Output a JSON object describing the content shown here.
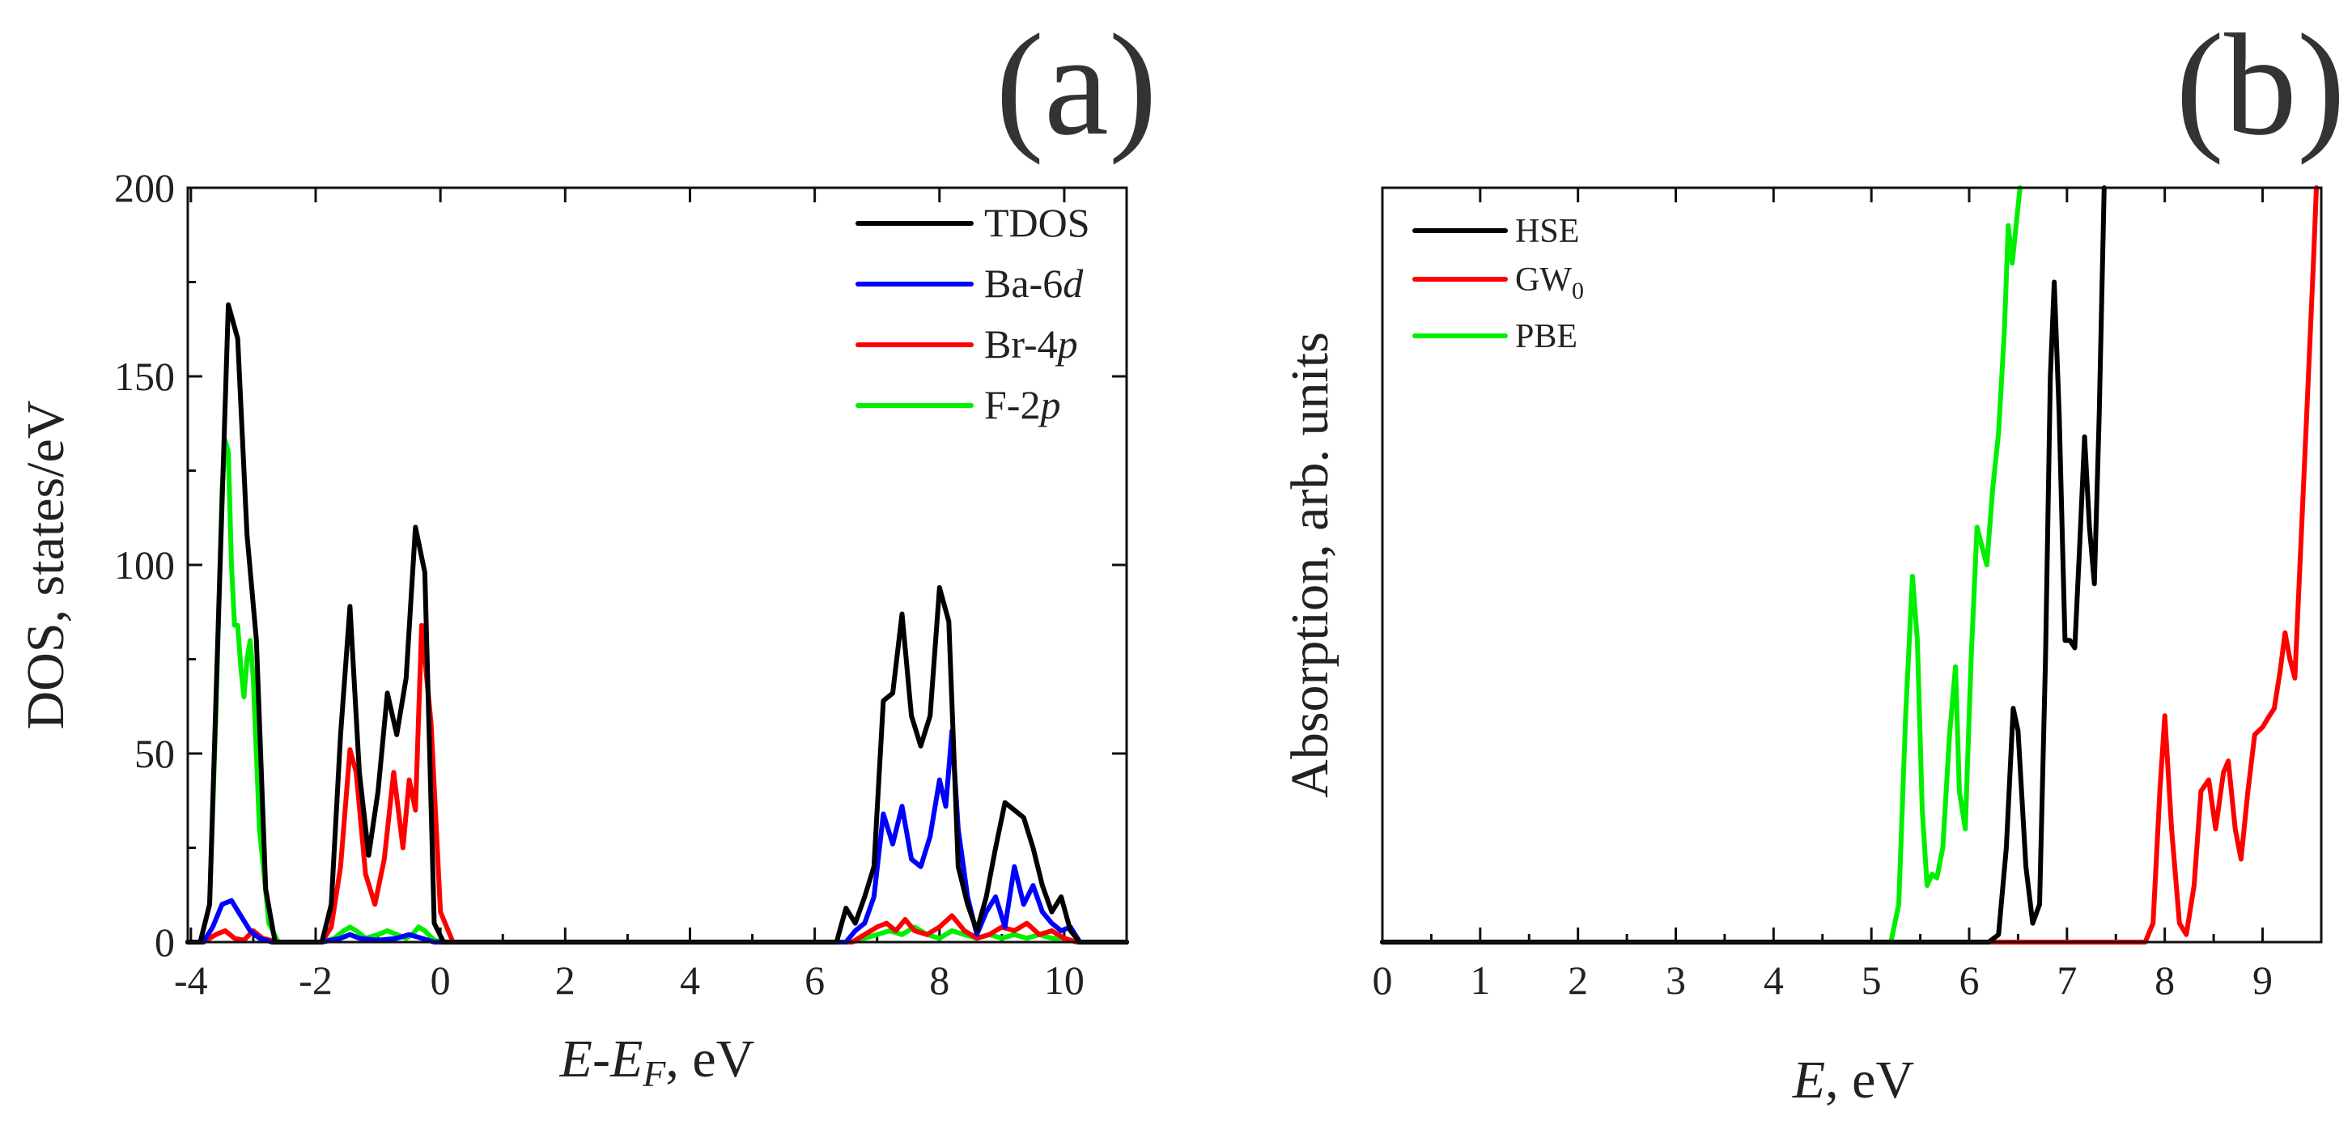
{
  "colors": {
    "TDOS": "#000000",
    "Ba-6d": "#0000ff",
    "Br-4p": "#ff0000",
    "F-2p": "#00ee00",
    "HSE": "#000000",
    "GW0": "#ff0000",
    "PBE": "#00ee00"
  },
  "chart_data": [
    {
      "type": "line",
      "panel_label": "(a)",
      "title": "",
      "xlabel": {
        "italic": "E",
        "dash": "-",
        "italic2": "E",
        "sub": "F",
        "rest": ", eV"
      },
      "ylabel": "DOS, states/eV",
      "xlim": [
        -4.05,
        11.0
      ],
      "ylim": [
        0,
        200
      ],
      "xticks": [
        -4,
        -2,
        0,
        2,
        4,
        6,
        8,
        10
      ],
      "xtick_labels": [
        "-4",
        "-2",
        "0",
        "2",
        "4",
        "6",
        "8",
        "10"
      ],
      "yticks": [
        0,
        50,
        100,
        150,
        200
      ],
      "ytick_labels": [
        "0",
        "50",
        "100",
        "150",
        "200"
      ],
      "legend": [
        {
          "key": "TDOS",
          "name": "TDOS",
          "italic": ""
        },
        {
          "key": "Ba-6d",
          "name": "Ba-6",
          "italic": "d"
        },
        {
          "key": "Br-4p",
          "name": "Br-4",
          "italic": "p"
        },
        {
          "key": "F-2p",
          "name": "F-2",
          "italic": "p"
        }
      ],
      "series": [
        {
          "name": "TDOS",
          "x": [
            -4.05,
            -3.85,
            -3.7,
            -3.55,
            -3.4,
            -3.25,
            -3.1,
            -2.95,
            -2.8,
            -2.65,
            -2.5,
            -1.9,
            -1.75,
            -1.6,
            -1.45,
            -1.3,
            -1.15,
            -1.0,
            -0.85,
            -0.7,
            -0.55,
            -0.4,
            -0.25,
            -0.1,
            0.05,
            0.2,
            6.2,
            6.35,
            6.5,
            6.65,
            6.8,
            6.95,
            7.1,
            7.25,
            7.4,
            7.55,
            7.7,
            7.85,
            8.0,
            8.15,
            8.3,
            8.45,
            8.6,
            8.75,
            8.9,
            9.05,
            9.2,
            9.35,
            9.5,
            9.65,
            9.8,
            9.95,
            10.1,
            10.25,
            10.4,
            11.0
          ],
          "values": [
            0,
            0,
            10,
            90,
            169,
            160,
            108,
            80,
            14,
            0,
            0,
            0,
            10,
            55,
            89,
            45,
            23,
            40,
            66,
            55,
            70,
            110,
            98,
            5,
            0,
            0,
            0,
            0,
            9,
            5,
            12,
            20,
            64,
            66,
            87,
            60,
            52,
            60,
            94,
            85,
            20,
            10,
            3,
            12,
            25,
            37,
            35,
            33,
            25,
            15,
            8,
            12,
            3,
            0,
            0,
            0
          ]
        },
        {
          "name": "Ba-6d",
          "x": [
            -4.05,
            -3.8,
            -3.65,
            -3.5,
            -3.35,
            -3.2,
            -3.05,
            -2.9,
            -2.7,
            -1.9,
            -1.6,
            -1.45,
            -1.3,
            -1.0,
            -0.7,
            -0.5,
            -0.3,
            -0.1,
            6.2,
            6.5,
            6.65,
            6.8,
            6.95,
            7.1,
            7.25,
            7.4,
            7.55,
            7.7,
            7.85,
            8.0,
            8.1,
            8.2,
            8.3,
            8.45,
            8.6,
            8.75,
            8.9,
            9.05,
            9.2,
            9.35,
            9.5,
            9.65,
            9.8,
            9.95,
            10.1,
            10.25,
            11.0
          ],
          "values": [
            0,
            0,
            4,
            10,
            11,
            7,
            3,
            1,
            0,
            0,
            1,
            2,
            1,
            0.5,
            1,
            2,
            1,
            0,
            0,
            0,
            3,
            5,
            12,
            34,
            26,
            36,
            22,
            20,
            28,
            43,
            36,
            56,
            30,
            12,
            2,
            8,
            12,
            4,
            20,
            10,
            15,
            8,
            5,
            3,
            4,
            0,
            0
          ]
        },
        {
          "name": "Br-4p",
          "x": [
            -4.05,
            -3.8,
            -3.6,
            -3.45,
            -3.3,
            -3.15,
            -3.0,
            -2.85,
            -2.6,
            -1.9,
            -1.75,
            -1.6,
            -1.45,
            -1.35,
            -1.2,
            -1.05,
            -0.9,
            -0.75,
            -0.6,
            -0.5,
            -0.4,
            -0.3,
            -0.15,
            0.0,
            0.2,
            6.2,
            6.6,
            6.8,
            7.0,
            7.15,
            7.3,
            7.45,
            7.6,
            7.8,
            8.0,
            8.2,
            8.4,
            8.6,
            8.8,
            9.0,
            9.2,
            9.4,
            9.6,
            9.8,
            10.0,
            10.2,
            11.0
          ],
          "values": [
            0,
            0,
            2,
            3,
            1,
            0.5,
            3,
            1,
            0,
            0,
            4,
            20,
            51,
            45,
            18,
            10,
            22,
            45,
            25,
            43,
            35,
            84,
            58,
            8,
            0,
            0,
            0,
            2,
            4,
            5,
            3,
            6,
            3,
            2,
            4,
            7,
            3,
            1,
            2,
            4,
            3,
            5,
            2,
            3,
            1,
            0,
            0
          ]
        },
        {
          "name": "F-2p",
          "x": [
            -4.05,
            -3.85,
            -3.7,
            -3.6,
            -3.5,
            -3.45,
            -3.4,
            -3.35,
            -3.3,
            -3.25,
            -3.2,
            -3.15,
            -3.1,
            -3.05,
            -3.0,
            -2.9,
            -2.75,
            -2.6,
            -1.9,
            -1.7,
            -1.55,
            -1.45,
            -1.35,
            -1.2,
            -1.0,
            -0.85,
            -0.7,
            -0.55,
            -0.45,
            -0.35,
            -0.25,
            -0.1,
            0.1,
            6.2,
            6.6,
            6.8,
            7.0,
            7.2,
            7.4,
            7.6,
            7.8,
            8.0,
            8.2,
            8.4,
            8.6,
            8.8,
            9.0,
            9.2,
            9.4,
            9.6,
            9.8,
            10.0,
            10.2,
            11.0
          ],
          "values": [
            0,
            0,
            10,
            60,
            120,
            133,
            130,
            100,
            84,
            84,
            73,
            65,
            75,
            80,
            70,
            30,
            5,
            0,
            0,
            1,
            3,
            4,
            3,
            1,
            2,
            3,
            2,
            1,
            2,
            4,
            3,
            0.5,
            0,
            0,
            0,
            1,
            2,
            3,
            2,
            4,
            2,
            1,
            3,
            2,
            1,
            2,
            1,
            2,
            1,
            2,
            1,
            1,
            0,
            0
          ]
        }
      ]
    },
    {
      "type": "line",
      "panel_label": "(b)",
      "title": "",
      "xlabel": {
        "italic": "E",
        "rest": ", eV"
      },
      "ylabel": "Absorption, arb. units",
      "xlim": [
        0,
        9.6
      ],
      "ylim": [
        0,
        200
      ],
      "xticks": [
        0,
        1,
        2,
        3,
        4,
        5,
        6,
        7,
        8,
        9
      ],
      "xtick_labels": [
        "0",
        "1",
        "2",
        "3",
        "4",
        "5",
        "6",
        "7",
        "8",
        "9"
      ],
      "yticks": [],
      "legend": [
        {
          "key": "HSE",
          "name": "HSE",
          "sub": ""
        },
        {
          "key": "GW0",
          "name": "GW",
          "sub": "0"
        },
        {
          "key": "PBE",
          "name": "PBE",
          "sub": ""
        }
      ],
      "series": [
        {
          "name": "HSE",
          "x": [
            0,
            6.2,
            6.3,
            6.38,
            6.45,
            6.5,
            6.58,
            6.65,
            6.72,
            6.78,
            6.83,
            6.87,
            6.92,
            6.98,
            7.03,
            7.08,
            7.13,
            7.18,
            7.23,
            7.28,
            7.33,
            7.38
          ],
          "values": [
            0,
            0,
            2,
            25,
            62,
            56,
            20,
            5,
            10,
            75,
            150,
            175,
            140,
            80,
            80,
            78,
            105,
            134,
            110,
            95,
            140,
            200
          ]
        },
        {
          "name": "GW0",
          "x": [
            0,
            7.8,
            7.88,
            7.95,
            8.0,
            8.07,
            8.15,
            8.22,
            8.3,
            8.37,
            8.45,
            8.52,
            8.6,
            8.65,
            8.72,
            8.78,
            8.85,
            8.92,
            9.0,
            9.07,
            9.12,
            9.18,
            9.23,
            9.28,
            9.33,
            9.4,
            9.46,
            9.52,
            9.55
          ],
          "values": [
            0,
            0,
            5,
            40,
            60,
            30,
            5,
            2,
            15,
            40,
            43,
            30,
            45,
            48,
            30,
            22,
            40,
            55,
            57,
            60,
            62,
            72,
            82,
            75,
            70,
            110,
            145,
            180,
            200
          ]
        },
        {
          "name": "PBE",
          "x": [
            0,
            5.2,
            5.28,
            5.35,
            5.42,
            5.47,
            5.52,
            5.57,
            5.62,
            5.67,
            5.73,
            5.8,
            5.86,
            5.9,
            5.96,
            6.02,
            6.08,
            6.13,
            6.18,
            6.24,
            6.3,
            6.36,
            6.4,
            6.44,
            6.48,
            6.52
          ],
          "values": [
            0,
            0,
            10,
            60,
            97,
            80,
            35,
            15,
            18,
            17,
            25,
            55,
            73,
            40,
            30,
            75,
            110,
            105,
            100,
            120,
            135,
            162,
            190,
            180,
            190,
            200
          ]
        }
      ]
    }
  ]
}
